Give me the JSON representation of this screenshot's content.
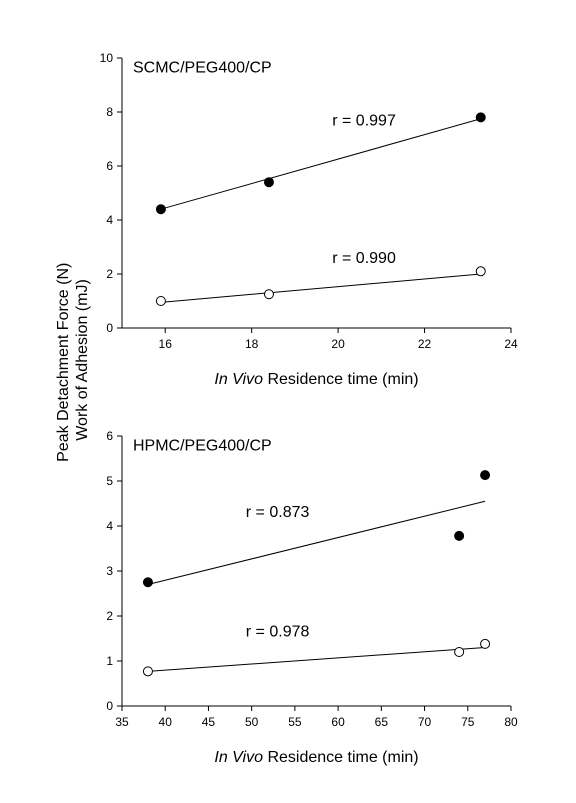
{
  "ylabel_line1": "Peak Detachment Force (N)",
  "ylabel_line2": "Work of Adhesion (mJ)",
  "chart_data": [
    {
      "type": "scatter",
      "title": "SCMC/PEG400/CP",
      "xlabel_italic": "In Vivo",
      "xlabel_rest": " Residence time (min)",
      "xlim": [
        15,
        24
      ],
      "ylim": [
        0,
        10
      ],
      "xticks": [
        16,
        18,
        20,
        22,
        24
      ],
      "yticks": [
        0,
        2,
        4,
        6,
        8,
        10
      ],
      "series": [
        {
          "marker": "filled",
          "x": [
            15.9,
            18.4,
            23.3
          ],
          "y": [
            4.4,
            5.4,
            7.8
          ],
          "fit": [
            [
              15.9,
              4.4
            ],
            [
              23.3,
              7.75
            ]
          ],
          "r_label": "r = 0.997",
          "r_pos": [
            20.6,
            7.5
          ]
        },
        {
          "marker": "open",
          "x": [
            15.9,
            18.4,
            23.3
          ],
          "y": [
            1.0,
            1.25,
            2.1
          ],
          "fit": [
            [
              15.9,
              0.95
            ],
            [
              23.3,
              2.0
            ]
          ],
          "r_label": "r = 0.990",
          "r_pos": [
            20.6,
            2.4
          ]
        }
      ]
    },
    {
      "type": "scatter",
      "title": "HPMC/PEG400/CP",
      "xlabel_italic": "In Vivo",
      "xlabel_rest": " Residence time (min)",
      "xlim": [
        35,
        80
      ],
      "ylim": [
        0,
        6
      ],
      "xticks": [
        35,
        40,
        45,
        50,
        55,
        60,
        65,
        70,
        75,
        80
      ],
      "yticks": [
        0,
        1,
        2,
        3,
        4,
        5,
        6
      ],
      "series": [
        {
          "marker": "filled",
          "x": [
            38,
            74,
            77
          ],
          "y": [
            2.75,
            3.78,
            5.13
          ],
          "fit": [
            [
              38,
              2.7
            ],
            [
              77,
              4.55
            ]
          ],
          "r_label": "r = 0.873",
          "r_pos": [
            53,
            4.2
          ]
        },
        {
          "marker": "open",
          "x": [
            38,
            74,
            77
          ],
          "y": [
            0.77,
            1.2,
            1.38
          ],
          "fit": [
            [
              38,
              0.77
            ],
            [
              77,
              1.3
            ]
          ],
          "r_label": "r = 0.978",
          "r_pos": [
            53,
            1.55
          ]
        }
      ]
    }
  ]
}
